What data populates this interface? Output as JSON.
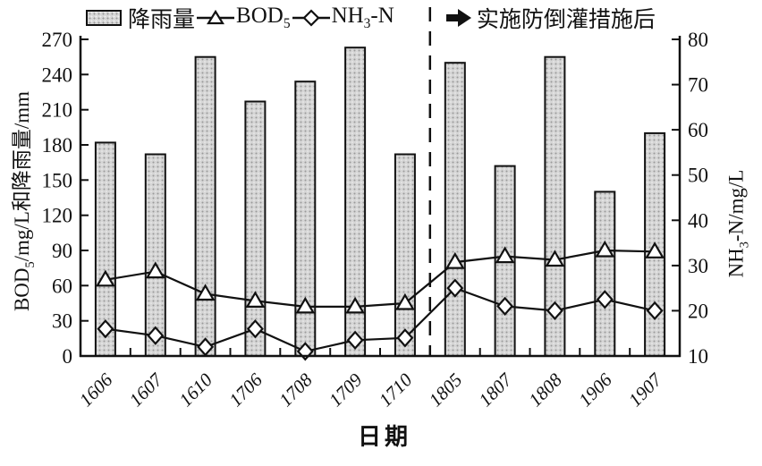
{
  "legend": {
    "rainfall": "降雨量",
    "bod5_base": "BOD",
    "bod5_sub": "5",
    "nh3_base": "NH",
    "nh3_sub": "3",
    "nh3_rest": "-N",
    "annotation": "实施防倒灌措施后"
  },
  "chart_data": {
    "type": "bar",
    "subtype": "dual-axis bar + line combo",
    "categories": [
      "1606",
      "1607",
      "1610",
      "1706",
      "1708",
      "1709",
      "1710",
      "1805",
      "1807",
      "1808",
      "1906",
      "1907"
    ],
    "series": [
      {
        "name": "降雨量",
        "type": "bar",
        "axis": "left",
        "unit": "mm",
        "values": [
          182,
          172,
          255,
          217,
          234,
          263,
          172,
          250,
          162,
          255,
          140,
          190
        ]
      },
      {
        "name": "BOD5",
        "type": "line",
        "marker": "triangle",
        "axis": "left",
        "unit": "mg/L",
        "values": [
          65,
          72,
          53,
          47,
          42,
          42,
          45,
          80,
          85,
          82,
          90,
          89
        ]
      },
      {
        "name": "NH3-N",
        "type": "line",
        "marker": "diamond",
        "axis": "right",
        "unit": "mg/L",
        "values": [
          16,
          14.5,
          12,
          16,
          11,
          13.5,
          14,
          25,
          21,
          20,
          22.5,
          20
        ]
      }
    ],
    "left_axis": {
      "label_base": "BOD",
      "label_sub": "5",
      "label_rest": "/mg/L和降雨量/mm",
      "min": 0,
      "max": 270,
      "ticks": [
        0,
        30,
        60,
        90,
        120,
        150,
        180,
        210,
        240,
        270
      ]
    },
    "right_axis": {
      "label_base": "NH",
      "label_sub": "3",
      "label_rest": "-N/mg/L",
      "min": 10,
      "max": 80,
      "ticks": [
        10,
        20,
        30,
        40,
        50,
        60,
        70,
        80
      ]
    },
    "x_axis": {
      "label": "日期"
    },
    "annotation": {
      "divider_before_category": "1805",
      "divider_between_indices": [
        6,
        7
      ],
      "label": "实施防倒灌措施后"
    },
    "legend_position": "top",
    "grid": false,
    "colors": {
      "bar_fill": "#d6d6d6",
      "bar_dot": "#9a9a9a",
      "stroke": "#111111",
      "marker_fill": "#ffffff"
    }
  }
}
